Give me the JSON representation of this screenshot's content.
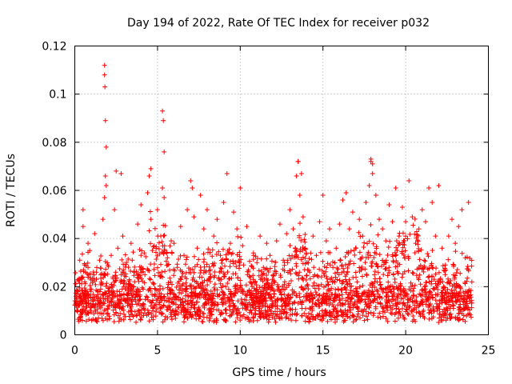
{
  "chart_data": {
    "type": "scatter",
    "title": "Day 194 of 2022, Rate Of TEC Index for receiver p032",
    "xlabel": "GPS time / hours",
    "ylabel": "ROTI / TECUs",
    "xlim": [
      0,
      25
    ],
    "ylim": [
      0,
      0.12
    ],
    "x_ticks": [
      "0",
      "5",
      "10",
      "15",
      "20",
      "25"
    ],
    "y_ticks": [
      "0",
      "0.02",
      "0.04",
      "0.06",
      "0.08",
      "0.1",
      "0.12"
    ],
    "grid": true,
    "marker": "plus",
    "color": "#ff0000",
    "series": [
      {
        "x": [
          0.1,
          0.2,
          0.3,
          0.4,
          0.5,
          0.6,
          0.7,
          0.8,
          0.9,
          1.0,
          1.1,
          1.2,
          1.3,
          1.4,
          1.5,
          1.6,
          1.7,
          1.8,
          1.85,
          1.9,
          2.0,
          2.1,
          2.2,
          2.3,
          2.4,
          2.5,
          2.6,
          2.7,
          2.8,
          2.9,
          3.0,
          3.2,
          3.4,
          3.6,
          3.8,
          4.0,
          4.2,
          4.4,
          4.5,
          4.6,
          4.8,
          5.0,
          5.2,
          5.3,
          5.4,
          5.6,
          5.8,
          6.0,
          6.2,
          6.4,
          6.6,
          6.8,
          7.0,
          7.1,
          7.2,
          7.4,
          7.6,
          7.8,
          8.0,
          8.2,
          8.4,
          8.6,
          8.8,
          9.0,
          9.2,
          9.4,
          9.6,
          9.8,
          10.0,
          10.2,
          10.4,
          10.6,
          10.8,
          11.0,
          11.2,
          11.4,
          11.6,
          11.8,
          12.0,
          12.2,
          12.4,
          12.6,
          12.8,
          13.0,
          13.2,
          13.4,
          13.5,
          13.6,
          13.8,
          14.0,
          14.2,
          14.4,
          14.6,
          14.8,
          15.0,
          15.2,
          15.4,
          15.6,
          15.8,
          16.0,
          16.2,
          16.4,
          16.6,
          16.8,
          17.0,
          17.2,
          17.4,
          17.6,
          17.8,
          17.9,
          18.0,
          18.2,
          18.4,
          18.6,
          18.8,
          19.0,
          19.2,
          19.4,
          19.6,
          19.8,
          20.0,
          20.2,
          20.4,
          20.6,
          20.8,
          21.0,
          21.2,
          21.4,
          21.6,
          21.8,
          22.0,
          22.2,
          22.4,
          22.6,
          22.8,
          23.0,
          23.2,
          23.4,
          23.6,
          23.8,
          24.0,
          1.8,
          1.8,
          1.82,
          1.85,
          1.9,
          5.3,
          5.35,
          5.4,
          13.5,
          13.7,
          17.9,
          18.0,
          2.8,
          4.6,
          0.5,
          0.8
        ],
        "y": [
          0.012,
          0.018,
          0.031,
          0.024,
          0.045,
          0.022,
          0.015,
          0.028,
          0.035,
          0.019,
          0.014,
          0.042,
          0.026,
          0.018,
          0.031,
          0.022,
          0.048,
          0.057,
          0.066,
          0.062,
          0.029,
          0.017,
          0.033,
          0.024,
          0.052,
          0.068,
          0.036,
          0.018,
          0.025,
          0.041,
          0.022,
          0.015,
          0.038,
          0.026,
          0.046,
          0.054,
          0.034,
          0.059,
          0.066,
          0.048,
          0.037,
          0.052,
          0.041,
          0.061,
          0.057,
          0.032,
          0.022,
          0.038,
          0.028,
          0.045,
          0.033,
          0.052,
          0.064,
          0.061,
          0.049,
          0.036,
          0.058,
          0.044,
          0.052,
          0.027,
          0.041,
          0.048,
          0.033,
          0.055,
          0.067,
          0.038,
          0.051,
          0.044,
          0.061,
          0.029,
          0.045,
          0.022,
          0.034,
          0.019,
          0.041,
          0.028,
          0.038,
          0.033,
          0.025,
          0.039,
          0.046,
          0.031,
          0.042,
          0.052,
          0.044,
          0.066,
          0.072,
          0.058,
          0.049,
          0.034,
          0.026,
          0.041,
          0.033,
          0.047,
          0.058,
          0.039,
          0.044,
          0.028,
          0.036,
          0.046,
          0.056,
          0.059,
          0.044,
          0.051,
          0.036,
          0.048,
          0.041,
          0.055,
          0.062,
          0.073,
          0.071,
          0.058,
          0.048,
          0.044,
          0.039,
          0.054,
          0.047,
          0.061,
          0.041,
          0.053,
          0.047,
          0.064,
          0.049,
          0.038,
          0.044,
          0.052,
          0.047,
          0.061,
          0.055,
          0.041,
          0.062,
          0.036,
          0.029,
          0.041,
          0.048,
          0.038,
          0.045,
          0.052,
          0.032,
          0.055,
          0.022,
          0.112,
          0.108,
          0.103,
          0.089,
          0.078,
          0.093,
          0.089,
          0.076,
          0.072,
          0.067,
          0.072,
          0.067,
          0.067,
          0.069,
          0.052,
          0.038
        ]
      }
    ]
  }
}
